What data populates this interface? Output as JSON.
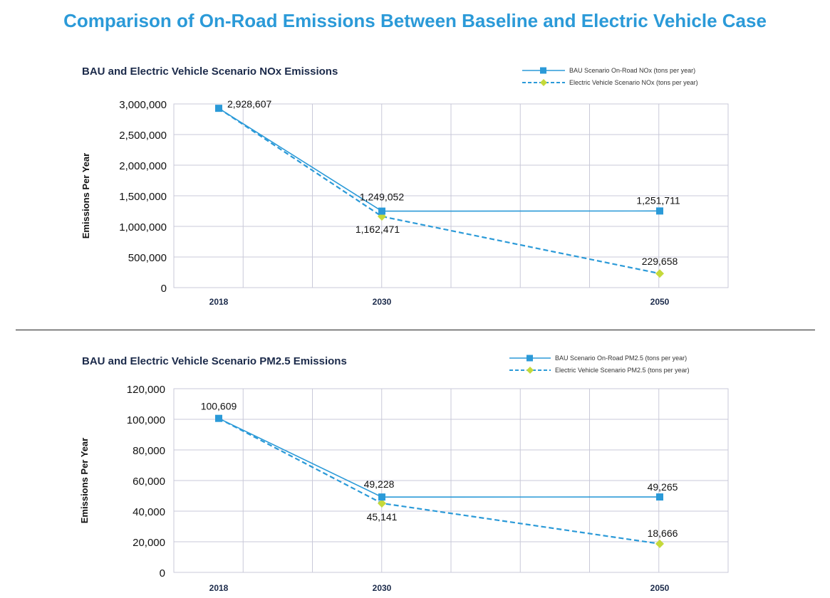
{
  "page": {
    "title": "Comparison of On-Road Emissions Between Baseline and Electric Vehicle Case"
  },
  "colors": {
    "title": "#2b9ad8",
    "bau_line": "#2b9ad8",
    "ev_line": "#2b9ad8",
    "bau_marker": "#2b9ad8",
    "ev_marker": "#c5d93a",
    "grid": "#c9c9d8"
  },
  "chart_data": [
    {
      "type": "line",
      "title": "BAU and Electric Vehicle Scenario NOx Emissions",
      "xlabel": "",
      "ylabel": "Emissions Per Year",
      "x": [
        "2018",
        "2030",
        "2050"
      ],
      "ylim": [
        0,
        3000000
      ],
      "yticks": [
        "0",
        "500,000",
        "1,000,000",
        "1,500,000",
        "2,000,000",
        "2,500,000",
        "3,000,000"
      ],
      "grid": true,
      "legend_position": "top-right",
      "series": [
        {
          "name": "BAU Scenario On-Road NOx (tons per year)",
          "values": [
            2928607,
            1249052,
            1251711
          ],
          "labels": [
            "2,928,607",
            "1,249,052",
            "1,251,711"
          ],
          "style": "solid",
          "marker": "square"
        },
        {
          "name": "Electric Vehicle Scenario NOx (tons per year)",
          "values": [
            2928607,
            1162471,
            229658
          ],
          "labels": [
            "",
            "1,162,471",
            "229,658"
          ],
          "style": "dashed",
          "marker": "diamond"
        }
      ]
    },
    {
      "type": "line",
      "title": "BAU and Electric Vehicle Scenario PM2.5 Emissions",
      "xlabel": "",
      "ylabel": "Emissions Per Year",
      "x": [
        "2018",
        "2030",
        "2050"
      ],
      "ylim": [
        0,
        120000
      ],
      "yticks": [
        "0",
        "20,000",
        "40,000",
        "60,000",
        "80,000",
        "100,000",
        "120,000"
      ],
      "grid": true,
      "legend_position": "top-right",
      "series": [
        {
          "name": "BAU Scenario On-Road PM2.5 (tons per year)",
          "values": [
            100609,
            49228,
            49265
          ],
          "labels": [
            "100,609",
            "49,228",
            "49,265"
          ],
          "style": "solid",
          "marker": "square"
        },
        {
          "name": "Electric Vehicle Scenario PM2.5 (tons per year)",
          "values": [
            100609,
            45141,
            18666
          ],
          "labels": [
            "",
            "45,141",
            "18,666"
          ],
          "style": "dashed",
          "marker": "diamond"
        }
      ]
    }
  ]
}
